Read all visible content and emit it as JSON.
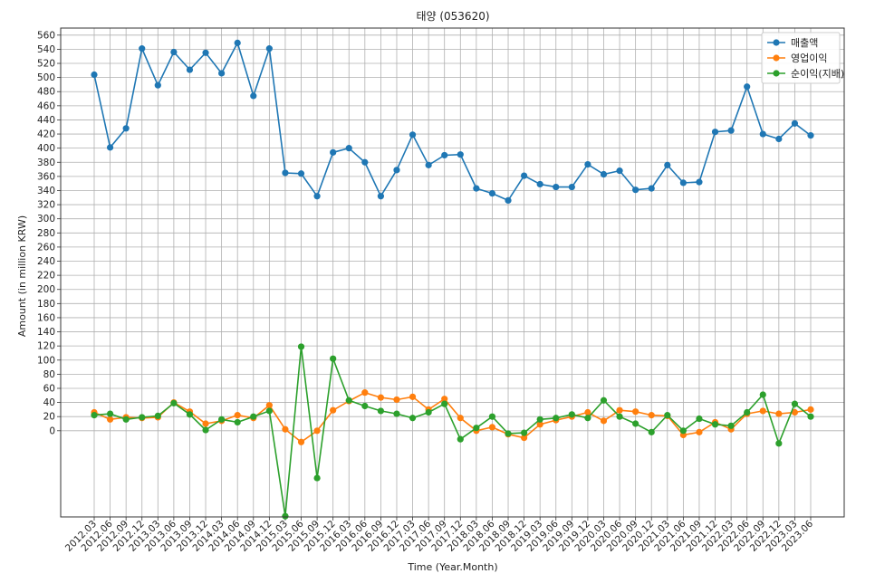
{
  "chart_data": {
    "type": "line",
    "title": "태양 (053620)",
    "xlabel": "Time (Year.Month)",
    "ylabel": "Amount (in million KRW)",
    "ylim": [
      -122,
      570
    ],
    "yticks": [
      0,
      20,
      40,
      60,
      80,
      100,
      120,
      140,
      160,
      180,
      200,
      220,
      240,
      260,
      280,
      300,
      320,
      340,
      360,
      380,
      400,
      420,
      440,
      460,
      480,
      500,
      520,
      540,
      560
    ],
    "grid": true,
    "legend_position": "top-right",
    "categories": [
      "2012.03",
      "2012.06",
      "2012.09",
      "2012.12",
      "2013.03",
      "2013.06",
      "2013.09",
      "2013.12",
      "2014.03",
      "2014.06",
      "2014.09",
      "2014.12",
      "2015.03",
      "2015.06",
      "2015.09",
      "2015.12",
      "2016.03",
      "2016.06",
      "2016.09",
      "2016.12",
      "2017.03",
      "2017.06",
      "2017.09",
      "2017.12",
      "2018.03",
      "2018.06",
      "2018.09",
      "2018.12",
      "2019.03",
      "2019.06",
      "2019.09",
      "2019.12",
      "2020.03",
      "2020.06",
      "2020.09",
      "2020.12",
      "2021.03",
      "2021.06",
      "2021.09",
      "2021.12",
      "2022.03",
      "2022.06",
      "2022.09",
      "2022.12",
      "2023.03",
      "2023.06"
    ],
    "series": [
      {
        "name": "매출액",
        "color": "#1f77b4",
        "values": [
          504,
          401,
          428,
          541,
          489,
          536,
          511,
          535,
          506,
          549,
          474,
          541,
          365,
          364,
          332,
          394,
          400,
          380,
          332,
          369,
          419,
          376,
          390,
          391,
          343,
          336,
          326,
          361,
          349,
          345,
          345,
          377,
          363,
          368,
          341,
          343,
          376,
          351,
          352,
          423,
          425,
          487,
          420,
          413,
          435,
          418
        ]
      },
      {
        "name": "영업이익",
        "color": "#ff7f0e",
        "values": [
          26,
          16,
          19,
          18,
          19,
          40,
          27,
          10,
          14,
          22,
          18,
          36,
          2,
          -16,
          0,
          29,
          42,
          54,
          47,
          44,
          48,
          30,
          45,
          18,
          0,
          5,
          -5,
          -10,
          9,
          15,
          20,
          26,
          14,
          29,
          27,
          22,
          21,
          -6,
          -2,
          12,
          2,
          24,
          28,
          24,
          26,
          30
        ]
      },
      {
        "name": "순이익(지배)",
        "color": "#2ca02c",
        "values": [
          22,
          24,
          16,
          19,
          21,
          39,
          23,
          1,
          16,
          12,
          20,
          28,
          -121,
          119,
          -67,
          102,
          43,
          35,
          28,
          24,
          18,
          26,
          38,
          -12,
          4,
          20,
          -4,
          -3,
          16,
          18,
          23,
          18,
          43,
          20,
          10,
          -2,
          22,
          0,
          17,
          9,
          7,
          26,
          51,
          -18,
          38,
          20
        ]
      }
    ]
  }
}
